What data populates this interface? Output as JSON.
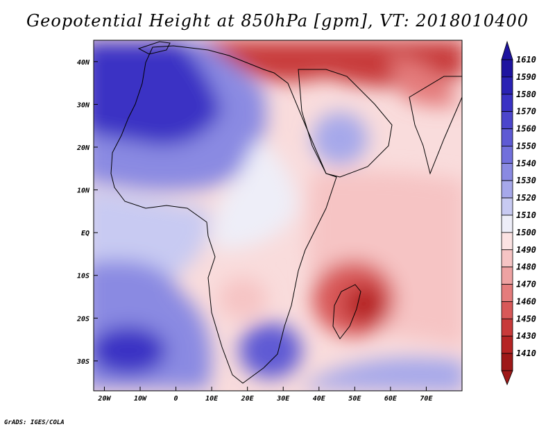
{
  "title": "Geopotential Height at 850hPa [gpm], VT: 2018010400",
  "footer": "GrADS: IGES/COLA",
  "map": {
    "lon_range": [
      -23,
      80
    ],
    "lat_range": [
      -37,
      45
    ],
    "x_ticks": [
      "20W",
      "10W",
      "0",
      "10E",
      "20E",
      "30E",
      "40E",
      "50E",
      "60E",
      "70E"
    ],
    "x_tick_lons": [
      -20,
      -10,
      0,
      10,
      20,
      30,
      40,
      50,
      60,
      70
    ],
    "y_ticks": [
      "40N",
      "30N",
      "20N",
      "10N",
      "EQ",
      "10S",
      "20S",
      "30S"
    ],
    "y_tick_lats": [
      40,
      30,
      20,
      10,
      0,
      -10,
      -20,
      -30
    ]
  },
  "colorbar": {
    "levels": [
      "1610",
      "1590",
      "1580",
      "1570",
      "1560",
      "1550",
      "1540",
      "1530",
      "1520",
      "1510",
      "1500",
      "1490",
      "1480",
      "1470",
      "1460",
      "1450",
      "1430",
      "1410"
    ],
    "colors": [
      "#1e14a0",
      "#2a22b4",
      "#3a32c4",
      "#4c46cc",
      "#5e5ad4",
      "#7270dc",
      "#8a8ae2",
      "#a6a8ea",
      "#c8caf2",
      "#eeeef8",
      "#fbe2e2",
      "#f6c4c4",
      "#eea2a2",
      "#e47c7c",
      "#d85858",
      "#c83a3a",
      "#b52424",
      "#9e1818"
    ]
  }
}
